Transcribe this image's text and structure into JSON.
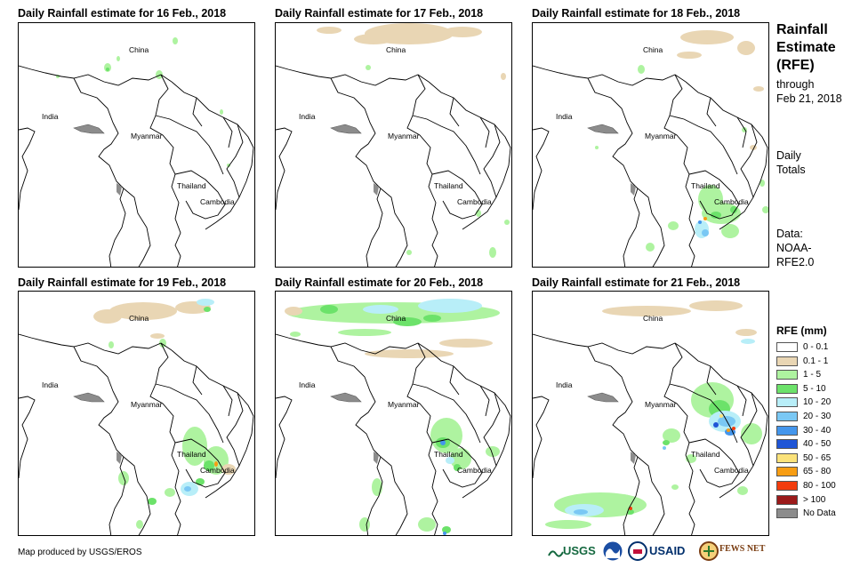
{
  "panels": [
    {
      "title": "Daily Rainfall estimate for 16 Feb., 2018",
      "day": "16"
    },
    {
      "title": "Daily Rainfall estimate for 17 Feb., 2018",
      "day": "17"
    },
    {
      "title": "Daily Rainfall estimate for 18 Feb., 2018",
      "day": "18"
    },
    {
      "title": "Daily Rainfall estimate for 19 Feb., 2018",
      "day": "19"
    },
    {
      "title": "Daily Rainfall estimate for 20 Feb., 2018",
      "day": "20"
    },
    {
      "title": "Daily Rainfall estimate for 21 Feb., 2018",
      "day": "21"
    }
  ],
  "map_labels": {
    "china": "China",
    "india": "India",
    "myanmar": "Myanmar",
    "thailand": "Thailand",
    "cambodia": "Cambodia"
  },
  "side": {
    "title_line1": "Rainfall",
    "title_line2": "Estimate",
    "title_line3": "(RFE)",
    "through": "through",
    "through_date": "Feb 21, 2018",
    "daily": "Daily",
    "totals": "Totals",
    "data_label": "Data:",
    "data_source1": "NOAA-",
    "data_source2": "RFE2.0"
  },
  "legend": {
    "title": "RFE (mm)",
    "items": [
      {
        "label": "0 - 0.1",
        "color": "#ffffff"
      },
      {
        "label": "0.1 - 1",
        "color": "#e9d6b4"
      },
      {
        "label": "1 - 5",
        "color": "#aef3a0"
      },
      {
        "label": "5 - 10",
        "color": "#6ce26a"
      },
      {
        "label": "10 - 20",
        "color": "#b8eef8"
      },
      {
        "label": "20 - 30",
        "color": "#7ac8f4"
      },
      {
        "label": "30 - 40",
        "color": "#4496ec"
      },
      {
        "label": "40 - 50",
        "color": "#1f55d6"
      },
      {
        "label": "50 - 65",
        "color": "#fbe27a"
      },
      {
        "label": "65 - 80",
        "color": "#f79d13"
      },
      {
        "label": "80 - 100",
        "color": "#f33c0d"
      },
      {
        "label": "> 100",
        "color": "#9b1a1a"
      },
      {
        "label": "No Data",
        "color": "#8c8c8c"
      }
    ]
  },
  "footer": {
    "credit": "Map produced by USGS/EROS"
  },
  "logos": {
    "usgs": "USGS",
    "usaid": "USAID",
    "fewsnet": "FEWS NET"
  }
}
